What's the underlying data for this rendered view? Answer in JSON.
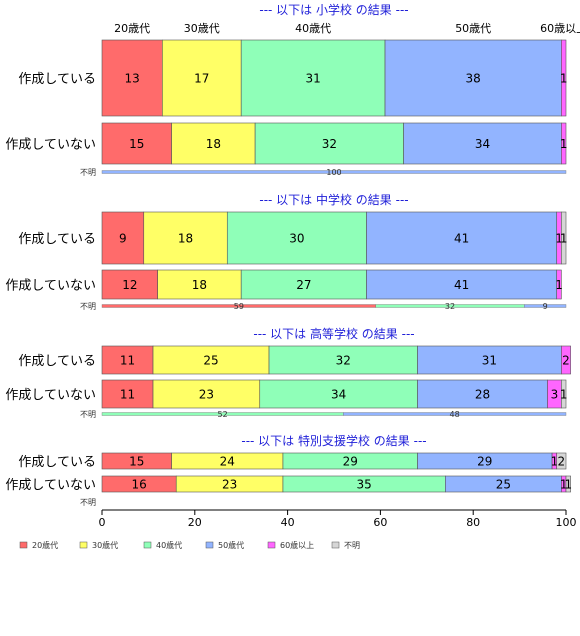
{
  "chart_data": {
    "type": "bar",
    "orientation": "horizontal-stacked-percent",
    "xlim": [
      0,
      100
    ],
    "xticks": [
      "0",
      "20",
      "40",
      "60",
      "80",
      "100"
    ],
    "categories": [
      "20歳代",
      "30歳代",
      "40歳代",
      "50歳代",
      "60歳以上",
      "不明"
    ],
    "colors": [
      "#ff6b6b",
      "#ffff66",
      "#8fffb8",
      "#92b4ff",
      "#ff66ff",
      "#d6d6d6"
    ],
    "groups": [
      {
        "title": "--- 以下は 小学校 の結果 ---",
        "show_headers": true,
        "rows": [
          {
            "label": "作成している",
            "values": [
              13,
              17,
              31,
              38,
              1,
              0
            ],
            "labels": [
              "13",
              "17",
              "31",
              "38",
              "1",
              ""
            ]
          },
          {
            "label": "作成していない",
            "values": [
              15,
              18,
              32,
              34,
              1,
              0
            ],
            "labels": [
              "15",
              "18",
              "32",
              "34",
              "1",
              ""
            ]
          }
        ],
        "unknown": {
          "label": "不明",
          "values": [
            0,
            0,
            0,
            100,
            0,
            0
          ],
          "labels": [
            "",
            "",
            "",
            "100",
            "",
            ""
          ]
        }
      },
      {
        "title": "--- 以下は 中学校 の結果 ---",
        "show_headers": false,
        "rows": [
          {
            "label": "作成している",
            "values": [
              9,
              18,
              30,
              41,
              1,
              1
            ],
            "labels": [
              "9",
              "18",
              "30",
              "41",
              "1",
              "1"
            ]
          },
          {
            "label": "作成していない",
            "values": [
              12,
              18,
              27,
              41,
              1,
              0
            ],
            "labels": [
              "12",
              "18",
              "27",
              "41",
              "1",
              ""
            ]
          }
        ],
        "unknown": {
          "label": "不明",
          "values": [
            59,
            0,
            32,
            9,
            0,
            0
          ],
          "labels": [
            "59",
            "",
            "32",
            "9",
            "",
            ""
          ]
        }
      },
      {
        "title": "--- 以下は 高等学校 の結果 ---",
        "show_headers": false,
        "rows": [
          {
            "label": "作成している",
            "values": [
              11,
              25,
              32,
              31,
              2,
              0
            ],
            "labels": [
              "11",
              "25",
              "32",
              "31",
              "2",
              ""
            ]
          },
          {
            "label": "作成していない",
            "values": [
              11,
              23,
              34,
              28,
              3,
              1
            ],
            "labels": [
              "11",
              "23",
              "34",
              "28",
              "3",
              "1"
            ]
          }
        ],
        "unknown": {
          "label": "不明",
          "values": [
            0,
            0,
            52,
            48,
            0,
            0
          ],
          "labels": [
            "",
            "",
            "52",
            "48",
            "",
            ""
          ]
        }
      },
      {
        "title": "--- 以下は 特別支援学校 の結果 ---",
        "show_headers": false,
        "rows": [
          {
            "label": "作成している",
            "values": [
              15,
              24,
              29,
              29,
              1,
              2
            ],
            "labels": [
              "15",
              "24",
              "29",
              "29",
              "1",
              "2"
            ]
          },
          {
            "label": "作成していない",
            "values": [
              16,
              23,
              35,
              25,
              1,
              1
            ],
            "labels": [
              "16",
              "23",
              "35",
              "25",
              "1",
              "1"
            ]
          }
        ],
        "unknown": {
          "label": "不明",
          "values": [
            0,
            0,
            0,
            0,
            0,
            0
          ],
          "labels": [
            "",
            "",
            "",
            "",
            "",
            ""
          ]
        }
      }
    ],
    "legend": [
      "20歳代",
      "30歳代",
      "40歳代",
      "50歳代",
      "60歳以上",
      "不明"
    ],
    "legend_position": "bottom-left"
  }
}
